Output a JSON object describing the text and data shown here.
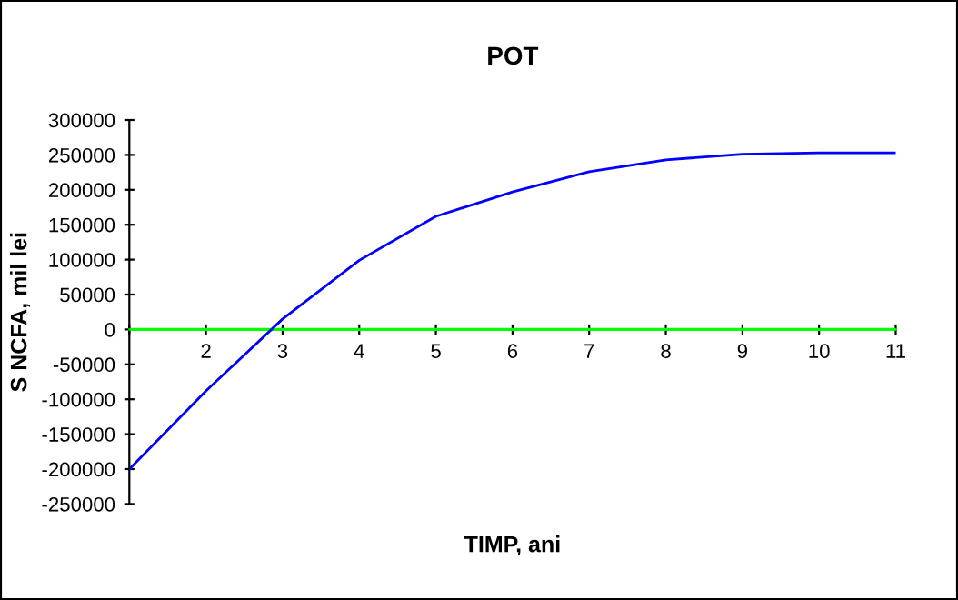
{
  "chart_data": {
    "type": "line",
    "title": "POT",
    "xlabel": "TIMP, ani",
    "ylabel": "S NCFA, mil lei",
    "x": [
      1,
      2,
      3,
      4,
      5,
      6,
      7,
      8,
      9,
      10,
      11
    ],
    "series": [
      {
        "color": "#0000ff",
        "values": [
          -200000,
          -88000,
          15000,
          99000,
          162000,
          197000,
          226000,
          243000,
          251000,
          253000,
          253000
        ]
      }
    ],
    "xlim": [
      1,
      11
    ],
    "xticks": [
      {
        "value": 1,
        "label": null
      },
      2,
      3,
      4,
      5,
      6,
      7,
      8,
      9,
      10,
      11
    ],
    "ylim": [
      -250000,
      300000
    ],
    "yticks": [
      -250000,
      -200000,
      -150000,
      -100000,
      -50000,
      0,
      50000,
      100000,
      150000,
      200000,
      250000,
      300000
    ],
    "ref_lines": [
      {
        "axis": "y",
        "value": 0,
        "color": "#00ff00"
      }
    ],
    "grid": false,
    "legend": false,
    "marker": "none",
    "line_style": "solid"
  }
}
